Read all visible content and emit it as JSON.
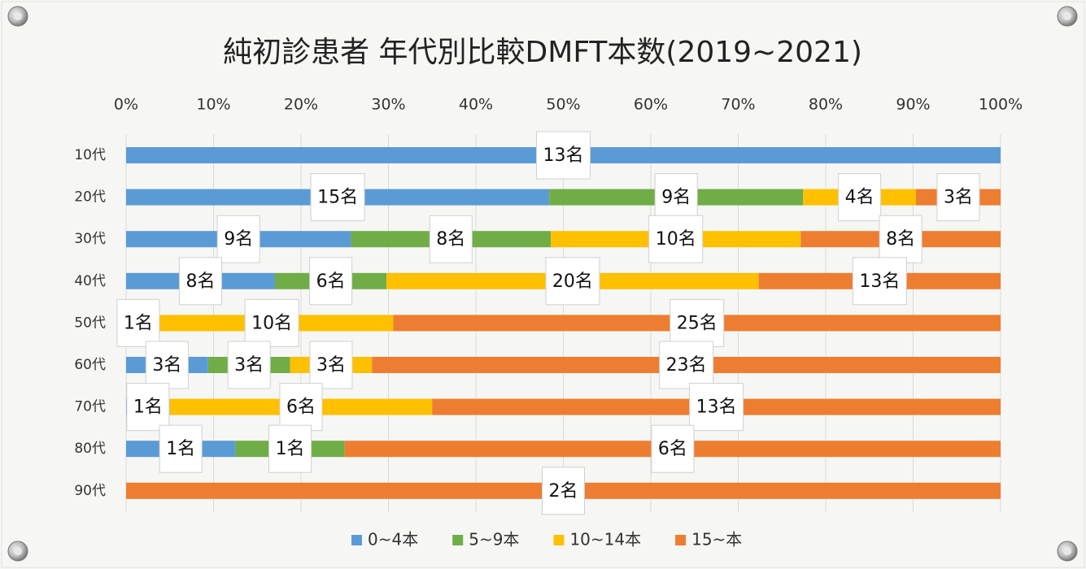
{
  "chart_data": {
    "type": "bar",
    "orientation": "horizontal",
    "stack": "percent",
    "title": "純初診患者 年代別比較DMFT本数(2019~2021)",
    "categories": [
      "10代",
      "20代",
      "30代",
      "40代",
      "50代",
      "60代",
      "70代",
      "80代",
      "90代"
    ],
    "series": [
      {
        "name": "0~4本",
        "color": "#5b9bd5",
        "values": [
          13,
          15,
          9,
          8,
          0,
          3,
          1,
          1,
          0
        ],
        "value_labels": [
          "13名",
          "15名",
          "9名",
          "8名",
          null,
          "3名",
          "1名",
          "1名",
          null
        ]
      },
      {
        "name": "5~9本",
        "color": "#70ad47",
        "values": [
          0,
          9,
          8,
          6,
          1,
          3,
          0,
          1,
          0
        ],
        "value_labels": [
          null,
          "9名",
          "8名",
          "6名",
          "1名",
          "3名",
          null,
          "1名",
          null
        ]
      },
      {
        "name": "10~14本",
        "color": "#ffc000",
        "values": [
          0,
          4,
          10,
          20,
          10,
          3,
          6,
          0,
          0
        ],
        "value_labels": [
          null,
          "4名",
          "10名",
          "20名",
          "10名",
          "3名",
          "6名",
          null,
          null
        ]
      },
      {
        "name": "15~本",
        "color": "#ed7d31",
        "values": [
          0,
          3,
          8,
          13,
          25,
          23,
          13,
          6,
          2
        ],
        "value_labels": [
          null,
          "3名",
          "8名",
          "13名",
          "25名",
          "23名",
          "13名",
          "6名",
          "2名"
        ]
      }
    ],
    "xlim": [
      0,
      100
    ],
    "xticks": [
      {
        "value": 0,
        "label": "0%"
      },
      {
        "value": 10,
        "label": "10%"
      },
      {
        "value": 20,
        "label": "20%"
      },
      {
        "value": 30,
        "label": "30%"
      },
      {
        "value": 40,
        "label": "40%"
      },
      {
        "value": 50,
        "label": "50%"
      },
      {
        "value": 60,
        "label": "60%"
      },
      {
        "value": 70,
        "label": "70%"
      },
      {
        "value": 80,
        "label": "80%"
      },
      {
        "value": 90,
        "label": "90%"
      },
      {
        "value": 100,
        "label": "100%"
      }
    ],
    "grid": true,
    "legend": "bottom"
  }
}
